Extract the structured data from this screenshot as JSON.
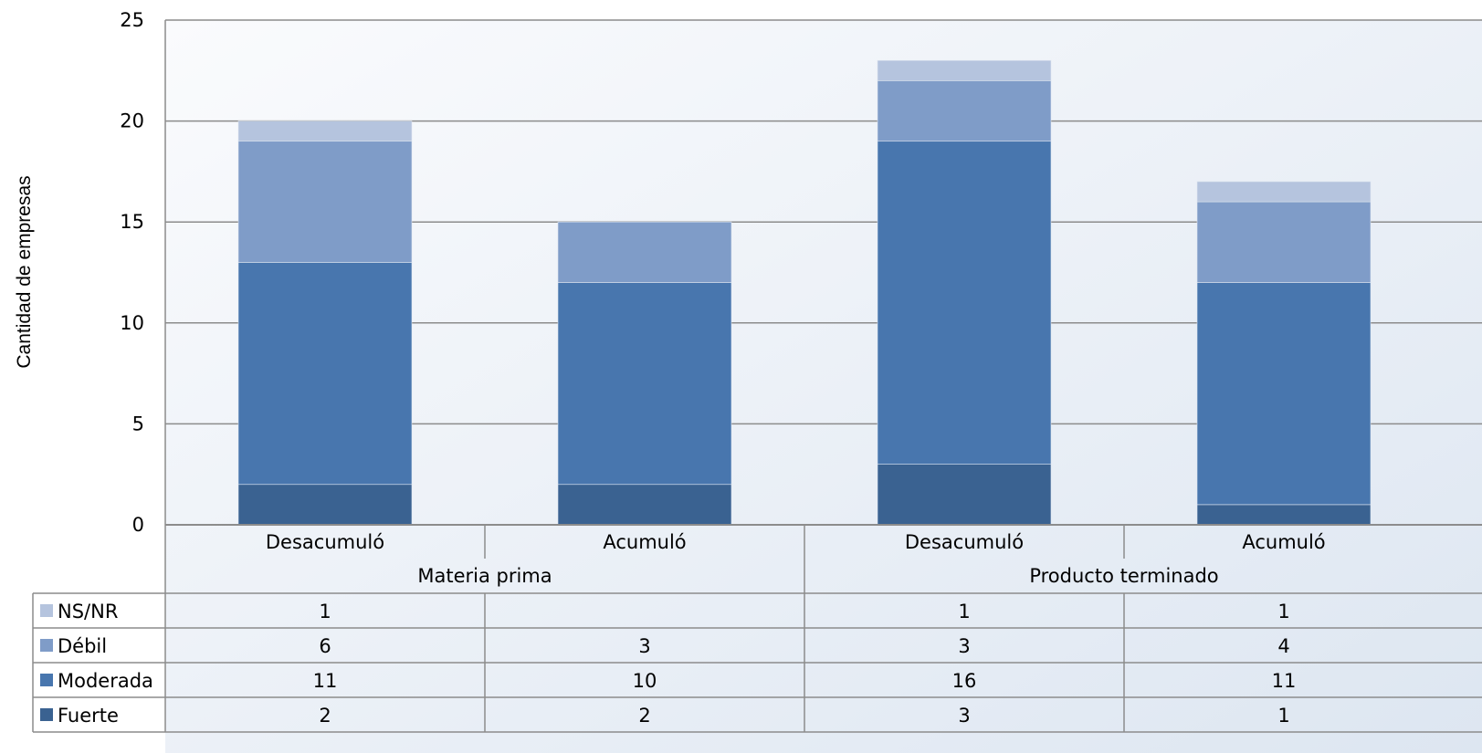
{
  "chart_data": {
    "type": "bar",
    "stacked": true,
    "ylabel": "Cantidad de empresas",
    "ylim": [
      0,
      25
    ],
    "yticks": [
      0,
      5,
      10,
      15,
      20,
      25
    ],
    "grid": true,
    "legend_placement": "data-table-left",
    "groups": [
      {
        "label": "Materia prima",
        "categories": [
          "Desacumuló",
          "Acumuló"
        ]
      },
      {
        "label": "Producto terminado",
        "categories": [
          "Desacumuló",
          "Acumuló"
        ]
      }
    ],
    "categories": [
      "Desacumuló",
      "Acumuló",
      "Desacumuló",
      "Acumuló"
    ],
    "series": [
      {
        "name": "Fuerte",
        "color": "#3a6291",
        "values": [
          2,
          2,
          3,
          1
        ]
      },
      {
        "name": "Moderada",
        "color": "#4876ae",
        "values": [
          11,
          10,
          16,
          11
        ]
      },
      {
        "name": "Débil",
        "color": "#7f9cc8",
        "values": [
          6,
          3,
          3,
          4
        ]
      },
      {
        "name": "NS/NR",
        "color": "#b5c4de",
        "values": [
          1,
          null,
          1,
          1
        ]
      }
    ],
    "table_row_order": [
      "NS/NR",
      "Débil",
      "Moderada",
      "Fuerte"
    ]
  }
}
